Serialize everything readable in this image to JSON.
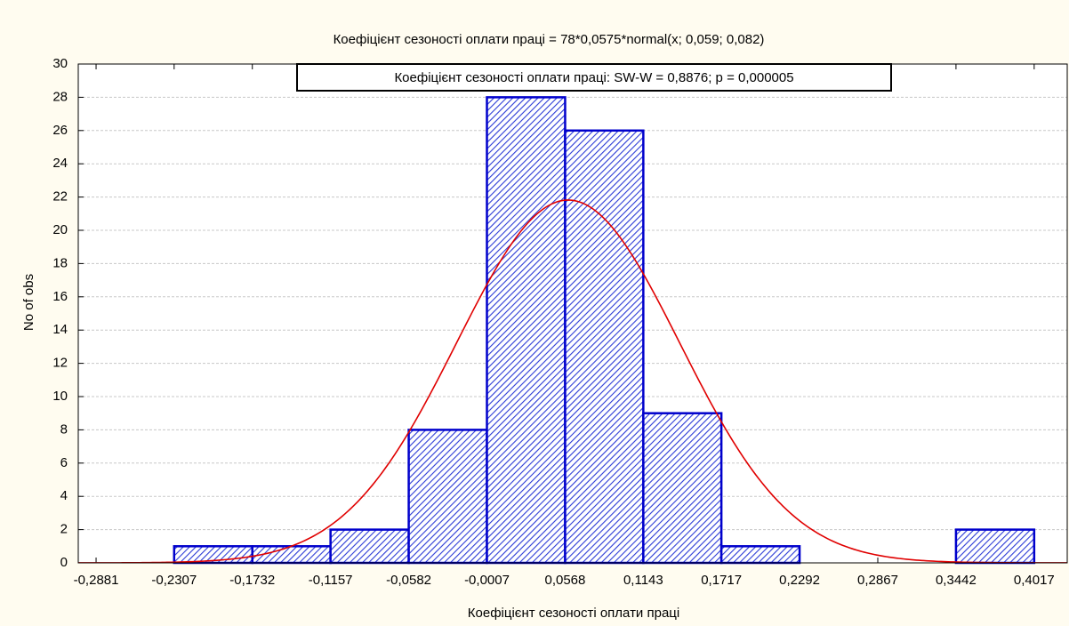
{
  "chart_data": {
    "type": "histogram",
    "title": "Коефіцієнт сезоності оплати праці = 78*0,0575*normal(x; 0,059; 0,082)",
    "annotation": "Коефіцієнт сезоності оплати праці:   SW-W = 0,8876; p = 0,000005",
    "x_label": "Коефіцієнт сезоності оплати праці",
    "y_label": "No of obs",
    "bins": [
      -0.2881,
      -0.2307,
      -0.1732,
      -0.1157,
      -0.0582,
      -0.0007,
      0.0568,
      0.1143,
      0.1717,
      0.2292,
      0.2867,
      0.3442,
      0.4017
    ],
    "values": [
      0,
      1,
      1,
      2,
      8,
      28,
      26,
      9,
      1,
      0,
      0,
      2
    ],
    "color": "#0000cc",
    "curve": {
      "n": 78,
      "bin_width": 0.0575,
      "mean": 0.059,
      "sd": 0.082,
      "color": "#e00000"
    },
    "xlim": [
      -0.3012,
      0.426
    ],
    "ylim": [
      0,
      30
    ],
    "xticks": [
      {
        "value": -0.2881,
        "label": "-0,2881"
      },
      {
        "value": -0.2307,
        "label": "-0,2307"
      },
      {
        "value": -0.1732,
        "label": "-0,1732"
      },
      {
        "value": -0.1157,
        "label": "-0,1157"
      },
      {
        "value": -0.0582,
        "label": "-0,0582"
      },
      {
        "value": -0.0007,
        "label": "-0,0007"
      },
      {
        "value": 0.0568,
        "label": "0,0568"
      },
      {
        "value": 0.1143,
        "label": "0,1143"
      },
      {
        "value": 0.1717,
        "label": "0,1717"
      },
      {
        "value": 0.2292,
        "label": "0,2292"
      },
      {
        "value": 0.2867,
        "label": "0,2867"
      },
      {
        "value": 0.3442,
        "label": "0,3442"
      },
      {
        "value": 0.4017,
        "label": "0,4017"
      }
    ],
    "yticks": [
      0,
      2,
      4,
      6,
      8,
      10,
      12,
      14,
      16,
      18,
      20,
      22,
      24,
      26,
      28,
      30
    ],
    "grid": true
  }
}
